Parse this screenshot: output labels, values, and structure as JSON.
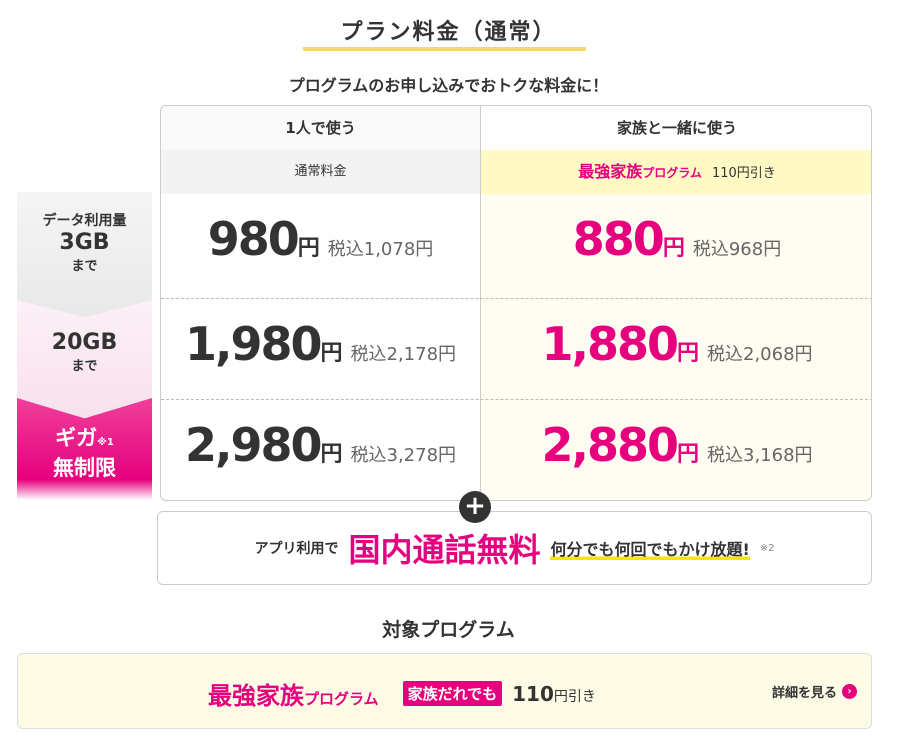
{
  "title": "プラン料金（通常）",
  "subtitle": "プログラムのお申し込みでおトクな料金に！",
  "columns": {
    "single": {
      "header": "1人で使う",
      "sub": "通常料金"
    },
    "family": {
      "header": "家族と一緒に使う",
      "program_name": "最強家族",
      "program_suffix": "プログラム",
      "discount": "110円引き"
    }
  },
  "rows": [
    {
      "label_top": "データ利用量",
      "label_main": "3GB",
      "label_bottom": "まで",
      "single_price": "980",
      "single_tax": "税込1,078円",
      "family_price": "880",
      "family_tax": "税込968円"
    },
    {
      "label_main": "20GB",
      "label_bottom": "まで",
      "single_price": "1,980",
      "single_tax": "税込2,178円",
      "family_price": "1,880",
      "family_tax": "税込2,068円"
    },
    {
      "label_main": "ギガ",
      "label_note": "※1",
      "label_bottom": "無制限",
      "single_price": "2,980",
      "single_tax": "税込3,278円",
      "family_price": "2,880",
      "family_tax": "税込3,168円"
    }
  ],
  "yen": "円",
  "plus_icon": "+",
  "addon": {
    "prefix": "アプリ利用で",
    "highlight": "国内通話無料",
    "desc": "何分でも何回でもかけ放題!",
    "note": "※2"
  },
  "target": {
    "heading": "対象プログラム",
    "program_name": "最強家族",
    "program_suffix": "プログラム",
    "badge": "家族だれでも",
    "amount": "110",
    "amount_unit": "円引き",
    "detail_link": "詳細を見る"
  },
  "colors": {
    "accent": "#e6007e",
    "highlight": "#fff9c4"
  }
}
